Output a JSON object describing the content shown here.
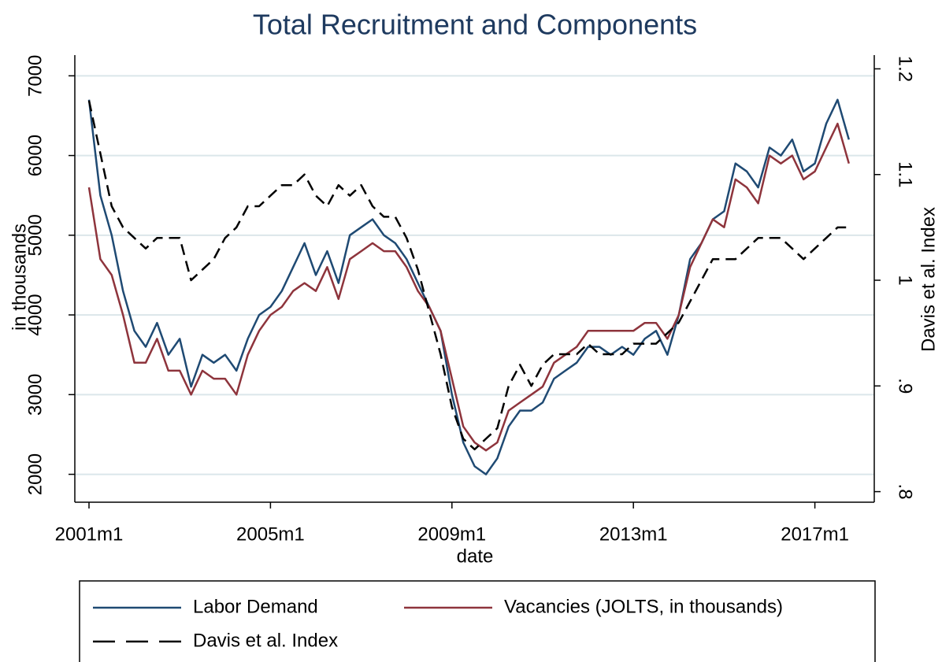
{
  "chart_data": {
    "type": "line",
    "title": "Total Recruitment and Components",
    "x_label": "date",
    "y_label": "in thousands",
    "y2_label": "Davis et al. Index",
    "x": [
      "2001m1",
      "2001m4",
      "2001m7",
      "2001m10",
      "2002m1",
      "2002m4",
      "2002m7",
      "2002m10",
      "2003m1",
      "2003m4",
      "2003m7",
      "2003m10",
      "2004m1",
      "2004m4",
      "2004m7",
      "2004m10",
      "2005m1",
      "2005m4",
      "2005m7",
      "2005m10",
      "2006m1",
      "2006m4",
      "2006m7",
      "2006m10",
      "2007m1",
      "2007m4",
      "2007m7",
      "2007m10",
      "2008m1",
      "2008m4",
      "2008m7",
      "2008m10",
      "2009m1",
      "2009m4",
      "2009m7",
      "2009m10",
      "2010m1",
      "2010m4",
      "2010m7",
      "2010m10",
      "2011m1",
      "2011m4",
      "2011m7",
      "2011m10",
      "2012m1",
      "2012m4",
      "2012m7",
      "2012m10",
      "2013m1",
      "2013m4",
      "2013m7",
      "2013m10",
      "2014m1",
      "2014m4",
      "2014m7",
      "2014m10",
      "2015m1",
      "2015m4",
      "2015m7",
      "2015m10",
      "2016m1",
      "2016m4",
      "2016m7",
      "2016m10",
      "2017m1",
      "2017m4",
      "2017m7",
      "2017m10"
    ],
    "xticks": [
      "2001m1",
      "2005m1",
      "2009m1",
      "2013m1",
      "2017m1"
    ],
    "ylim": [
      1650,
      7260
    ],
    "yticks": [
      2000,
      3000,
      4000,
      5000,
      6000,
      7000
    ],
    "y2lim": [
      0.79,
      1.213
    ],
    "y2ticks": [
      {
        "value": 0.8,
        "label": ".8"
      },
      {
        "value": 0.9,
        "label": ".9"
      },
      1,
      1.1,
      1.2
    ],
    "grid": true,
    "legend": "bottom",
    "series": [
      {
        "name": "Labor Demand",
        "color": "#1f4a73",
        "dash": "solid",
        "values": [
          6700,
          5500,
          5000,
          4300,
          3800,
          3600,
          3900,
          3500,
          3700,
          3100,
          3500,
          3400,
          3500,
          3300,
          3700,
          4000,
          4100,
          4300,
          4600,
          4900,
          4500,
          4800,
          4400,
          5000,
          5100,
          5200,
          5000,
          4900,
          4700,
          4400,
          4100,
          3800,
          3000,
          2400,
          2100,
          2000,
          2200,
          2600,
          2800,
          2800,
          2900,
          3200,
          3300,
          3400,
          3600,
          3600,
          3500,
          3600,
          3500,
          3700,
          3800,
          3500,
          4000,
          4700,
          4900,
          5200,
          5300,
          5900,
          5800,
          5600,
          6100,
          6000,
          6200,
          5800,
          5900,
          6400,
          6700,
          6200
        ]
      },
      {
        "name": "Vacancies (JOLTS, in thousands)",
        "color": "#8e343c",
        "dash": "solid",
        "values": [
          5600,
          4700,
          4500,
          4000,
          3400,
          3400,
          3700,
          3300,
          3300,
          3000,
          3300,
          3200,
          3200,
          3000,
          3500,
          3800,
          4000,
          4100,
          4300,
          4400,
          4300,
          4600,
          4200,
          4700,
          4800,
          4900,
          4800,
          4800,
          4600,
          4300,
          4100,
          3800,
          3200,
          2600,
          2400,
          2300,
          2400,
          2800,
          2900,
          3000,
          3100,
          3400,
          3500,
          3600,
          3800,
          3800,
          3800,
          3800,
          3800,
          3900,
          3900,
          3700,
          4000,
          4600,
          4900,
          5200,
          5100,
          5700,
          5600,
          5400,
          6000,
          5900,
          6000,
          5700,
          5800,
          6100,
          6400,
          5900
        ]
      },
      {
        "name": "Davis et al. Index",
        "color": "#000000",
        "dash": "dashed",
        "axis": "y2",
        "values": [
          1.17,
          1.12,
          1.07,
          1.05,
          1.04,
          1.03,
          1.04,
          1.04,
          1.04,
          1.0,
          1.01,
          1.02,
          1.04,
          1.05,
          1.07,
          1.07,
          1.08,
          1.09,
          1.09,
          1.1,
          1.08,
          1.07,
          1.09,
          1.08,
          1.09,
          1.07,
          1.06,
          1.06,
          1.04,
          1.01,
          0.97,
          0.93,
          0.88,
          0.85,
          0.84,
          0.85,
          0.86,
          0.9,
          0.92,
          0.9,
          0.92,
          0.93,
          0.93,
          0.93,
          0.94,
          0.93,
          0.93,
          0.93,
          0.94,
          0.94,
          0.94,
          0.95,
          0.96,
          0.98,
          1.0,
          1.02,
          1.02,
          1.02,
          1.03,
          1.04,
          1.04,
          1.04,
          1.03,
          1.02,
          1.03,
          1.04,
          1.05,
          1.05
        ]
      }
    ]
  }
}
